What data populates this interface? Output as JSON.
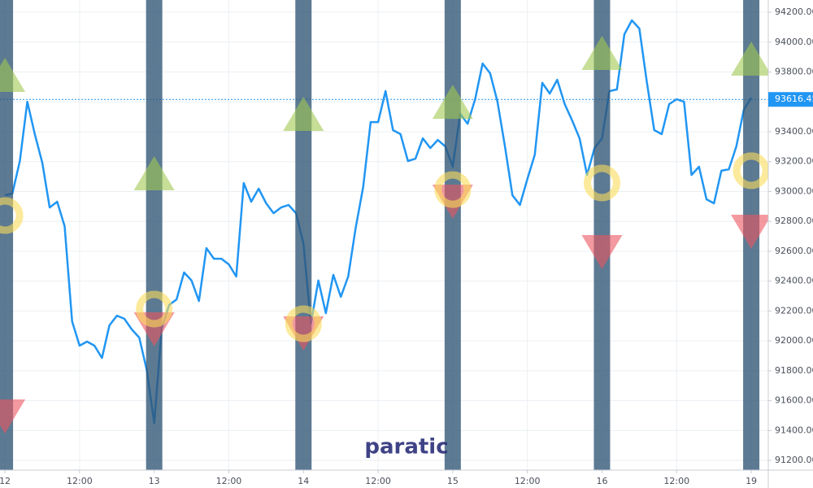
{
  "chart_data": {
    "type": "line",
    "watermark": "paratic",
    "xlim": [
      -0.033,
      5.114
    ],
    "ylim": [
      91135,
      94282
    ],
    "xticks": [
      {
        "value": 0,
        "label": "12"
      },
      {
        "value": 0.5,
        "label": "12:00"
      },
      {
        "value": 1,
        "label": "13"
      },
      {
        "value": 1.5,
        "label": "12:00"
      },
      {
        "value": 2,
        "label": "14"
      },
      {
        "value": 2.5,
        "label": "12:00"
      },
      {
        "value": 3,
        "label": "15"
      },
      {
        "value": 3.5,
        "label": "12:00"
      },
      {
        "value": 4,
        "label": "16"
      },
      {
        "value": 4.5,
        "label": "12:00"
      },
      {
        "value": 5,
        "label": "19"
      }
    ],
    "yticks": [
      {
        "value": 91200,
        "label": "91200.00"
      },
      {
        "value": 91400,
        "label": "91400.00"
      },
      {
        "value": 91600,
        "label": "91600.00"
      },
      {
        "value": 91800,
        "label": "91800.00"
      },
      {
        "value": 92000,
        "label": "92000.00"
      },
      {
        "value": 92200,
        "label": "92200.00"
      },
      {
        "value": 92400,
        "label": "92400.00"
      },
      {
        "value": 92600,
        "label": "92600.00"
      },
      {
        "value": 92800,
        "label": "92800.00"
      },
      {
        "value": 93000,
        "label": "93000.00"
      },
      {
        "value": 93200,
        "label": "93200.00"
      },
      {
        "value": 93400,
        "label": "93400.00"
      },
      {
        "value": 93600,
        "label": "93600.00"
      },
      {
        "value": 93800,
        "label": "93800.00"
      },
      {
        "value": 94000,
        "label": "94000.00"
      },
      {
        "value": 94200,
        "label": "94200.00"
      }
    ],
    "grid": true,
    "last_price": 93616.45,
    "last_price_color": "#2196f3",
    "session_bars": [
      0,
      1,
      2,
      3,
      4,
      5
    ],
    "session_color": "rgba(47,85,117,0.78)",
    "series": [
      {
        "color": "#2196f3",
        "x": [
          0,
          0.05,
          0.1,
          0.15,
          0.2,
          0.25,
          0.3,
          0.35,
          0.4,
          0.45,
          0.5,
          0.55,
          0.6,
          0.65,
          0.7,
          0.75,
          0.8,
          0.85,
          0.9,
          0.95,
          1,
          1.05,
          1.1,
          1.15,
          1.2,
          1.25,
          1.3,
          1.35,
          1.4,
          1.45,
          1.5,
          1.55,
          1.6,
          1.65,
          1.7,
          1.75,
          1.8,
          1.85,
          1.9,
          1.95,
          2,
          2.05,
          2.1,
          2.15,
          2.2,
          2.25,
          2.3,
          2.35,
          2.4,
          2.45,
          2.5,
          2.55,
          2.6,
          2.65,
          2.7,
          2.75,
          2.8,
          2.85,
          2.9,
          2.95,
          3,
          3.05,
          3.1,
          3.15,
          3.2,
          3.25,
          3.3,
          3.35,
          3.4,
          3.45,
          3.5,
          3.55,
          3.6,
          3.65,
          3.7,
          3.75,
          3.8,
          3.85,
          3.9,
          3.95,
          4,
          4.05,
          4.1,
          4.15,
          4.2,
          4.25,
          4.3,
          4.35,
          4.4,
          4.45,
          4.5,
          4.55,
          4.6,
          4.65,
          4.7,
          4.75,
          4.8,
          4.85,
          4.9,
          4.95,
          5
        ],
        "values": [
          92975,
          92986,
          93204,
          93601,
          93384,
          93193,
          92893,
          92932,
          92768,
          92131,
          91968,
          91995,
          91968,
          91886,
          92104,
          92169,
          92148,
          92077,
          92022,
          91805,
          91451,
          92077,
          92240,
          92278,
          92458,
          92404,
          92267,
          92621,
          92550,
          92550,
          92512,
          92431,
          93057,
          92932,
          93019,
          92921,
          92855,
          92893,
          92910,
          92855,
          92649,
          92115,
          92404,
          92186,
          92442,
          92295,
          92431,
          92757,
          93030,
          93465,
          93465,
          93672,
          93411,
          93384,
          93204,
          93220,
          93356,
          93291,
          93345,
          93302,
          93166,
          93520,
          93454,
          93618,
          93857,
          93792,
          93601,
          93302,
          92975,
          92910,
          93084,
          93247,
          93727,
          93656,
          93748,
          93585,
          93476,
          93356,
          93111,
          93291,
          93356,
          93672,
          93683,
          94053,
          94146,
          94091,
          93737,
          93411,
          93384,
          93585,
          93618,
          93601,
          93111,
          93166,
          92948,
          92921,
          93139,
          93149,
          93302,
          93547,
          93628
        ]
      }
    ],
    "up_signals": {
      "color": "rgba(160,200,80,0.6)",
      "x": [
        0,
        1,
        2,
        3,
        4,
        5
      ],
      "values": [
        93781,
        93122,
        93520,
        93601,
        93928,
        93890
      ]
    },
    "down_signals": {
      "color": "rgba(235,85,95,0.6)",
      "x": [
        0,
        1,
        2,
        3,
        4,
        5
      ],
      "values": [
        91494,
        92077,
        92050,
        92932,
        92594,
        92730
      ]
    },
    "circle_signals": {
      "color": "rgba(250,220,90,0.6)",
      "x": [
        0,
        1,
        2,
        3,
        4,
        5
      ],
      "values": [
        92839,
        92213,
        92115,
        93013,
        93057,
        93139
      ]
    }
  }
}
